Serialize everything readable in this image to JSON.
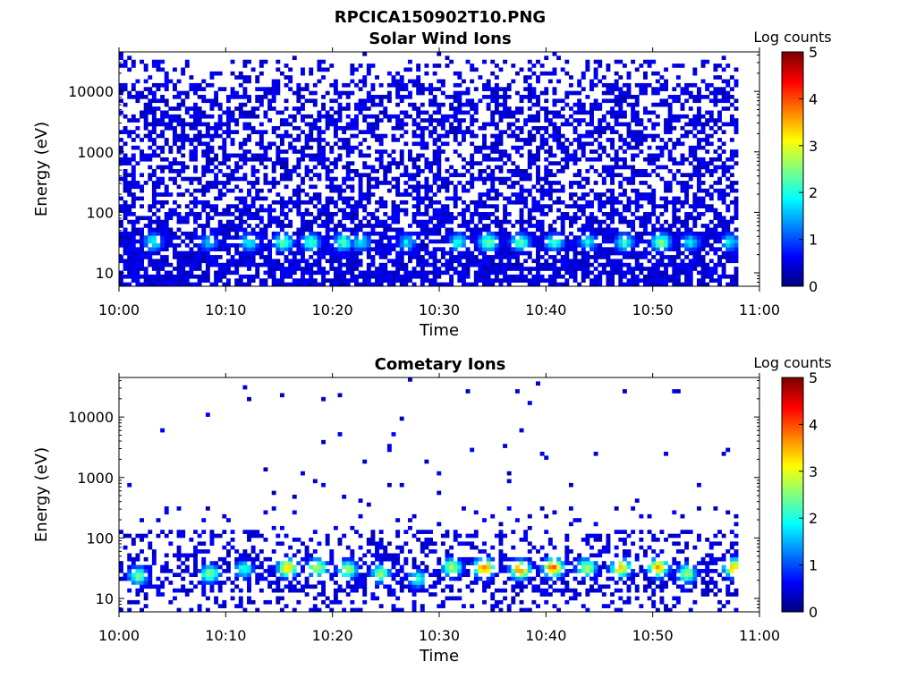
{
  "figure": {
    "title": "RPCICA150902T10.PNG"
  },
  "colormap": "jet",
  "chart_data": [
    {
      "type": "heatmap",
      "title": "Solar Wind Ions",
      "xlabel": "Time",
      "ylabel": "Energy (eV)",
      "x_ticks": [
        "10:00",
        "10:10",
        "10:20",
        "10:30",
        "10:40",
        "10:50",
        "11:00"
      ],
      "x_range_minutes": [
        0,
        60
      ],
      "data_end_minute": 58,
      "y_scale": "log",
      "y_ticks": [
        {
          "value": 10,
          "label": "10"
        },
        {
          "value": 100,
          "label": "100"
        },
        {
          "value": 1000,
          "label": "1000"
        },
        {
          "value": 10000,
          "label": "10000"
        }
      ],
      "y_range_eV": [
        6,
        45000
      ],
      "colorbar": {
        "label": "Log counts",
        "range": [
          0,
          5
        ],
        "ticks": [
          "0",
          "1",
          "2",
          "3",
          "4",
          "5"
        ]
      },
      "background": "white",
      "hotspots": [
        {
          "t": 3.0,
          "e": 30,
          "level": 1.8
        },
        {
          "t": 8.2,
          "e": 30,
          "level": 1.4
        },
        {
          "t": 12.0,
          "e": 30,
          "level": 1.6
        },
        {
          "t": 15.2,
          "e": 30,
          "level": 2.1
        },
        {
          "t": 17.8,
          "e": 30,
          "level": 1.9
        },
        {
          "t": 20.8,
          "e": 30,
          "level": 2.0
        },
        {
          "t": 22.5,
          "e": 30,
          "level": 1.6
        },
        {
          "t": 26.8,
          "e": 30,
          "level": 1.4
        },
        {
          "t": 31.6,
          "e": 30,
          "level": 1.8
        },
        {
          "t": 34.4,
          "e": 30,
          "level": 2.3
        },
        {
          "t": 37.4,
          "e": 30,
          "level": 2.1
        },
        {
          "t": 40.6,
          "e": 30,
          "level": 1.8
        },
        {
          "t": 43.8,
          "e": 30,
          "level": 1.5
        },
        {
          "t": 47.2,
          "e": 30,
          "level": 1.9
        },
        {
          "t": 50.6,
          "e": 30,
          "level": 2.2
        },
        {
          "t": 53.3,
          "e": 30,
          "level": 1.5
        },
        {
          "t": 57.0,
          "e": 30,
          "level": 1.6
        }
      ]
    },
    {
      "type": "heatmap",
      "title": "Cometary Ions",
      "xlabel": "Time",
      "ylabel": "Energy (eV)",
      "x_ticks": [
        "10:00",
        "10:10",
        "10:20",
        "10:30",
        "10:40",
        "10:50",
        "11:00"
      ],
      "x_range_minutes": [
        0,
        60
      ],
      "data_end_minute": 58,
      "y_scale": "log",
      "y_ticks": [
        {
          "value": 10,
          "label": "10"
        },
        {
          "value": 100,
          "label": "100"
        },
        {
          "value": 1000,
          "label": "1000"
        },
        {
          "value": 10000,
          "label": "10000"
        }
      ],
      "y_range_eV": [
        6,
        45000
      ],
      "colorbar": {
        "label": "Log counts",
        "range": [
          0,
          5
        ],
        "ticks": [
          "0",
          "1",
          "2",
          "3",
          "4",
          "5"
        ]
      },
      "background": "white",
      "hotspots": [
        {
          "t": 1.6,
          "e": 22,
          "level": 2.2
        },
        {
          "t": 8.3,
          "e": 24,
          "level": 2.3
        },
        {
          "t": 11.5,
          "e": 28,
          "level": 1.9
        },
        {
          "t": 15.6,
          "e": 30,
          "level": 3.2
        },
        {
          "t": 18.4,
          "e": 30,
          "level": 2.6
        },
        {
          "t": 21.2,
          "e": 28,
          "level": 2.5
        },
        {
          "t": 24.3,
          "e": 24,
          "level": 2.3
        },
        {
          "t": 27.8,
          "e": 20,
          "level": 1.8
        },
        {
          "t": 31.0,
          "e": 30,
          "level": 2.6
        },
        {
          "t": 34.0,
          "e": 30,
          "level": 3.6
        },
        {
          "t": 37.4,
          "e": 28,
          "level": 3.4
        },
        {
          "t": 40.5,
          "e": 30,
          "level": 3.6
        },
        {
          "t": 43.6,
          "e": 30,
          "level": 2.6
        },
        {
          "t": 46.8,
          "e": 30,
          "level": 3.1
        },
        {
          "t": 50.3,
          "e": 30,
          "level": 3.3
        },
        {
          "t": 53.0,
          "e": 24,
          "level": 2.4
        },
        {
          "t": 57.4,
          "e": 30,
          "level": 3.3
        }
      ]
    }
  ]
}
